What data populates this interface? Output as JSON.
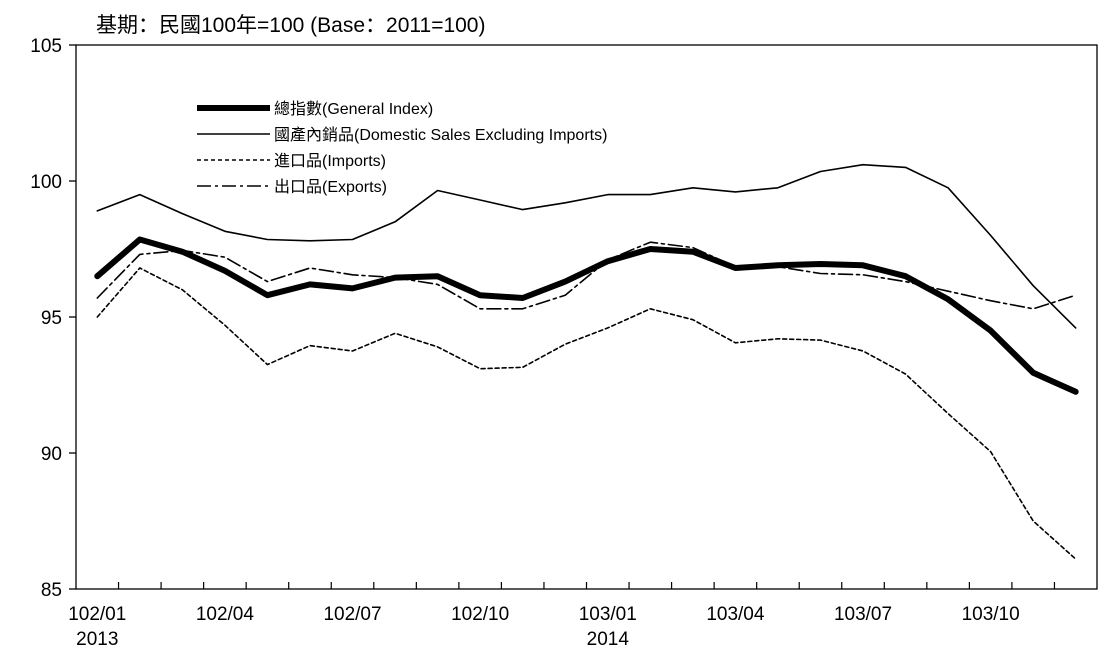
{
  "chart_data": {
    "type": "line",
    "title": "基期：民國100年=100 (Base：2011=100)",
    "ylim": [
      85,
      105
    ],
    "yticks": [
      85,
      90,
      95,
      100,
      105
    ],
    "x_tick_labels": [
      {
        "index": 0,
        "label": "102/01",
        "sublabel": "2013"
      },
      {
        "index": 3,
        "label": "102/04",
        "sublabel": ""
      },
      {
        "index": 6,
        "label": "102/07",
        "sublabel": ""
      },
      {
        "index": 9,
        "label": "102/10",
        "sublabel": ""
      },
      {
        "index": 12,
        "label": "103/01",
        "sublabel": "2014"
      },
      {
        "index": 15,
        "label": "103/04",
        "sublabel": ""
      },
      {
        "index": 18,
        "label": "103/07",
        "sublabel": ""
      },
      {
        "index": 21,
        "label": "103/10",
        "sublabel": ""
      }
    ],
    "n_points": 24,
    "legend_position": "top-left",
    "series": [
      {
        "name": "總指數(General Index)",
        "style": "thick",
        "color": "#000000",
        "values": [
          96.5,
          97.85,
          97.4,
          96.7,
          95.8,
          96.2,
          96.05,
          96.45,
          96.5,
          95.8,
          95.7,
          96.3,
          97.05,
          97.5,
          97.4,
          96.8,
          96.9,
          96.95,
          96.9,
          96.5,
          95.65,
          94.5,
          92.95,
          92.25
        ]
      },
      {
        "name": "國產內銷品(Domestic Sales Excluding Imports)",
        "style": "solid",
        "color": "#000000",
        "values": [
          98.9,
          99.5,
          98.8,
          98.15,
          97.85,
          97.8,
          97.85,
          98.5,
          99.65,
          99.3,
          98.95,
          99.2,
          99.5,
          99.5,
          99.75,
          99.6,
          99.75,
          100.35,
          100.6,
          100.5,
          99.75,
          98.0,
          96.15,
          94.6
        ]
      },
      {
        "name": "進口品(Imports)",
        "style": "dotted",
        "color": "#000000",
        "values": [
          95.0,
          96.8,
          96.0,
          94.7,
          93.25,
          93.95,
          93.75,
          94.4,
          93.9,
          93.1,
          93.15,
          94.0,
          94.6,
          95.3,
          94.9,
          94.05,
          94.2,
          94.15,
          93.75,
          92.9,
          91.45,
          90.05,
          87.5,
          86.1
        ]
      },
      {
        "name": "出口品(Exports)",
        "style": "dashdot",
        "color": "#000000",
        "values": [
          95.7,
          97.3,
          97.45,
          97.2,
          96.3,
          96.8,
          96.55,
          96.45,
          96.2,
          95.3,
          95.3,
          95.8,
          97.1,
          97.75,
          97.55,
          96.85,
          96.85,
          96.6,
          96.55,
          96.3,
          95.95,
          95.6,
          95.3,
          95.8
        ]
      }
    ]
  }
}
